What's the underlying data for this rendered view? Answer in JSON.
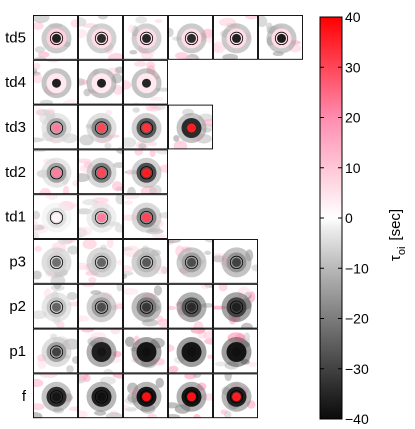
{
  "chart_data": {
    "type": "heatmap",
    "title": "",
    "rows": [
      {
        "label": "td5",
        "panels": [
          {
            "inner": -36,
            "ring": 8,
            "halo": -14,
            "ringline": true
          },
          {
            "inner": -34,
            "ring": 6,
            "halo": -12,
            "ringline": true
          },
          {
            "inner": -35,
            "ring": 6,
            "halo": -12,
            "ringline": true
          },
          {
            "inner": -34,
            "ring": 6,
            "halo": -14,
            "ringline": true
          },
          {
            "inner": -36,
            "ring": 6,
            "halo": -14,
            "ringline": true
          },
          {
            "inner": -37,
            "ring": 6,
            "halo": -15,
            "ringline": true
          }
        ]
      },
      {
        "label": "td4",
        "panels": [
          {
            "inner": -36,
            "ring": 4,
            "halo": -16,
            "ringline": false
          },
          {
            "inner": -36,
            "ring": 4,
            "halo": -16,
            "ringline": false
          },
          {
            "inner": -35,
            "ring": 4,
            "halo": -16,
            "ringline": false
          }
        ]
      },
      {
        "label": "td3",
        "panels": [
          {
            "inner": 22,
            "ring": -12,
            "halo": -6,
            "ringline": true
          },
          {
            "inner": 30,
            "ring": -18,
            "halo": -8,
            "ringline": true
          },
          {
            "inner": 33,
            "ring": -26,
            "halo": -12,
            "ringline": true
          },
          {
            "inner": 36,
            "ring": -34,
            "halo": -16,
            "ringline": false
          }
        ]
      },
      {
        "label": "td2",
        "panels": [
          {
            "inner": 22,
            "ring": -14,
            "halo": -6,
            "ringline": true
          },
          {
            "inner": 30,
            "ring": -20,
            "halo": -10,
            "ringline": true
          },
          {
            "inner": 36,
            "ring": -28,
            "halo": -12,
            "ringline": true
          }
        ]
      },
      {
        "label": "td1",
        "panels": [
          {
            "inner": 2,
            "ring": -4,
            "halo": -2,
            "ringline": true
          },
          {
            "inner": 22,
            "ring": -8,
            "halo": -4,
            "ringline": true
          },
          {
            "inner": 30,
            "ring": -18,
            "halo": -10,
            "ringline": true
          }
        ]
      },
      {
        "label": "p3",
        "panels": [
          {
            "inner": -22,
            "ring": -6,
            "halo": -8,
            "ringline": true
          },
          {
            "inner": -24,
            "ring": -8,
            "halo": -10,
            "ringline": true
          },
          {
            "inner": -26,
            "ring": -10,
            "halo": -12,
            "ringline": true
          },
          {
            "inner": -28,
            "ring": -14,
            "halo": -14,
            "ringline": true
          },
          {
            "inner": -30,
            "ring": -16,
            "halo": -16,
            "ringline": true
          }
        ]
      },
      {
        "label": "p2",
        "panels": [
          {
            "inner": -24,
            "ring": -8,
            "halo": -6,
            "ringline": true
          },
          {
            "inner": -28,
            "ring": -14,
            "halo": -12,
            "ringline": true
          },
          {
            "inner": -32,
            "ring": -20,
            "halo": -18,
            "ringline": true
          },
          {
            "inner": -34,
            "ring": -26,
            "halo": -22,
            "ringline": true
          },
          {
            "inner": -36,
            "ring": -30,
            "halo": -26,
            "ringline": true
          }
        ]
      },
      {
        "label": "p1",
        "panels": [
          {
            "inner": -30,
            "ring": -14,
            "halo": -8,
            "ringline": true
          },
          {
            "inner": -38,
            "ring": -36,
            "halo": -22,
            "ringline": false
          },
          {
            "inner": -39,
            "ring": -38,
            "halo": -26,
            "ringline": false
          },
          {
            "inner": -39,
            "ring": -38,
            "halo": -28,
            "ringline": false
          },
          {
            "inner": -39,
            "ring": -38,
            "halo": -28,
            "ringline": false
          }
        ]
      },
      {
        "label": "f",
        "panels": [
          {
            "inner": -38,
            "ring": -34,
            "halo": -16,
            "ringline": true
          },
          {
            "inner": -39,
            "ring": -36,
            "halo": -20,
            "ringline": true
          },
          {
            "inner": 38,
            "ring": -38,
            "halo": -20,
            "ringline": true
          },
          {
            "inner": 38,
            "ring": -38,
            "halo": -22,
            "ringline": true
          },
          {
            "inner": 36,
            "ring": -36,
            "halo": -20,
            "ringline": true
          }
        ]
      }
    ],
    "colorbar": {
      "label": "τ",
      "label_sub": "oi",
      "unit": "[sec]",
      "range": [
        -40,
        40
      ],
      "ticks": [
        40,
        30,
        20,
        10,
        0,
        -10,
        -20,
        -30,
        -40
      ],
      "tick_labels": [
        "40",
        "30",
        "20",
        "10",
        "0",
        "−10",
        "−20",
        "−30",
        "−40"
      ]
    }
  }
}
